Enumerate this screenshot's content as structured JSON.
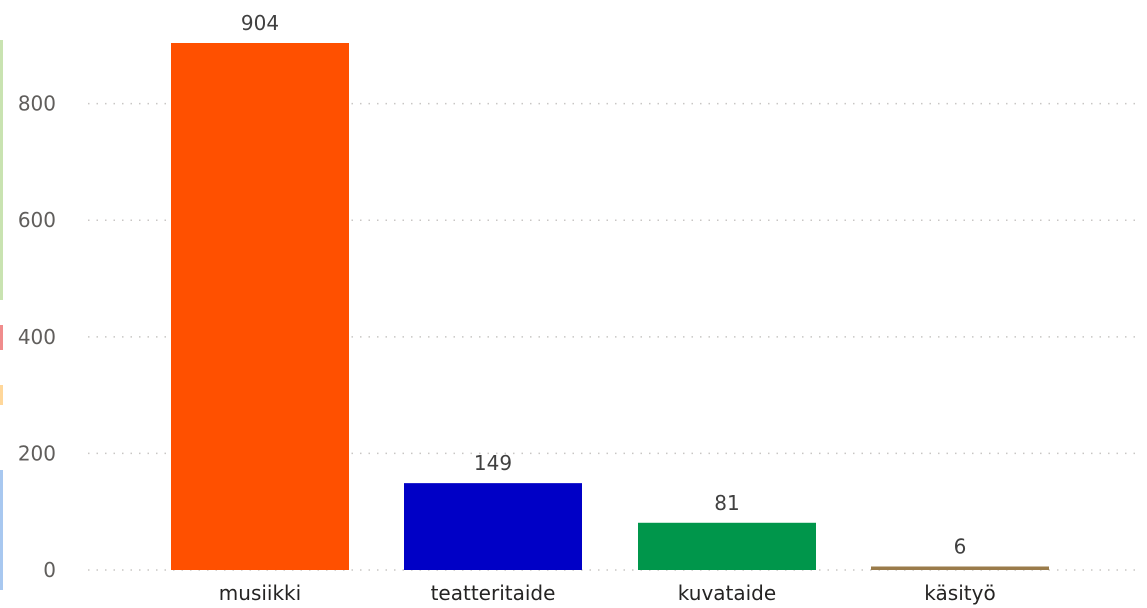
{
  "chart_data": {
    "type": "bar",
    "title": "",
    "xlabel": "",
    "ylabel": "",
    "categories": [
      "musiikki",
      "teatteritaide",
      "kuvataide",
      "käsityö"
    ],
    "values": [
      904,
      149,
      81,
      6
    ],
    "data_labels": [
      "904",
      "149",
      "81",
      "6"
    ],
    "colors": [
      "#ff5000",
      "#0000c6",
      "#00964b",
      "#9a7b4a"
    ],
    "ylim": [
      0,
      904
    ],
    "yticks": [
      0,
      200,
      400,
      600,
      800
    ],
    "ytick_labels": [
      "0",
      "200",
      "400",
      "600",
      "800"
    ],
    "grid": true,
    "legend": "none"
  },
  "colors": {
    "gridline": "#c8c6c4",
    "tick_text": "#605e5c",
    "category_text": "#252423",
    "data_label_text": "#404040"
  }
}
